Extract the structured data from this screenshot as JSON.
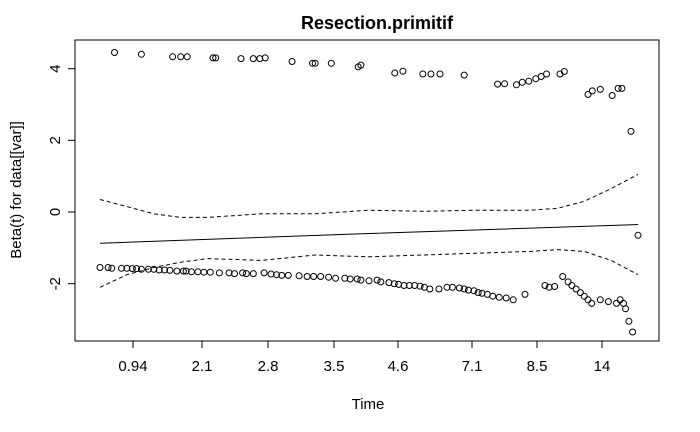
{
  "chart_data": {
    "type": "scatter",
    "title": "Resection.primitif",
    "xlabel": "Time",
    "ylabel": "Beta(t) for data[[var]]",
    "x_tick_labels": [
      "0.94",
      "2.1",
      "2.8",
      "3.5",
      "4.6",
      "7.1",
      "8.5",
      "14"
    ],
    "y_ticks": [
      -2,
      0,
      2,
      4
    ],
    "xlim": [
      0,
      1
    ],
    "ylim": [
      -3.6,
      4.8
    ],
    "grid": false,
    "points": [
      [
        0.027,
        4.45
      ],
      [
        0.077,
        4.4
      ],
      [
        0.135,
        4.33
      ],
      [
        0.15,
        4.33
      ],
      [
        0.162,
        4.33
      ],
      [
        0.21,
        4.3
      ],
      [
        0.215,
        4.3
      ],
      [
        0.262,
        4.28
      ],
      [
        0.285,
        4.28
      ],
      [
        0.297,
        4.28
      ],
      [
        0.307,
        4.3
      ],
      [
        0.357,
        4.2
      ],
      [
        0.395,
        4.15
      ],
      [
        0.4,
        4.15
      ],
      [
        0.43,
        4.15
      ],
      [
        0.48,
        4.05
      ],
      [
        0.485,
        4.1
      ],
      [
        0.548,
        3.88
      ],
      [
        0.563,
        3.93
      ],
      [
        0.6,
        3.85
      ],
      [
        0.615,
        3.85
      ],
      [
        0.632,
        3.85
      ],
      [
        0.677,
        3.82
      ],
      [
        0.739,
        3.57
      ],
      [
        0.752,
        3.58
      ],
      [
        0.774,
        3.55
      ],
      [
        0.785,
        3.62
      ],
      [
        0.797,
        3.65
      ],
      [
        0.81,
        3.72
      ],
      [
        0.82,
        3.78
      ],
      [
        0.83,
        3.85
      ],
      [
        0.855,
        3.85
      ],
      [
        0.863,
        3.92
      ],
      [
        0.907,
        3.28
      ],
      [
        0.915,
        3.38
      ],
      [
        0.93,
        3.42
      ],
      [
        0.952,
        3.25
      ],
      [
        0.963,
        3.45
      ],
      [
        0.97,
        3.45
      ],
      [
        0.987,
        2.25
      ],
      [
        1.0,
        -0.65
      ],
      [
        0.0,
        -1.55
      ],
      [
        0.015,
        -1.55
      ],
      [
        0.022,
        -1.57
      ],
      [
        0.04,
        -1.57
      ],
      [
        0.05,
        -1.57
      ],
      [
        0.06,
        -1.58
      ],
      [
        0.068,
        -1.58
      ],
      [
        0.077,
        -1.6
      ],
      [
        0.09,
        -1.6
      ],
      [
        0.1,
        -1.6
      ],
      [
        0.11,
        -1.62
      ],
      [
        0.12,
        -1.62
      ],
      [
        0.13,
        -1.63
      ],
      [
        0.143,
        -1.65
      ],
      [
        0.155,
        -1.65
      ],
      [
        0.16,
        -1.65
      ],
      [
        0.17,
        -1.67
      ],
      [
        0.182,
        -1.67
      ],
      [
        0.193,
        -1.68
      ],
      [
        0.205,
        -1.68
      ],
      [
        0.222,
        -1.7
      ],
      [
        0.24,
        -1.7
      ],
      [
        0.25,
        -1.72
      ],
      [
        0.265,
        -1.7
      ],
      [
        0.272,
        -1.72
      ],
      [
        0.285,
        -1.72
      ],
      [
        0.305,
        -1.7
      ],
      [
        0.318,
        -1.73
      ],
      [
        0.328,
        -1.75
      ],
      [
        0.338,
        -1.77
      ],
      [
        0.35,
        -1.77
      ],
      [
        0.37,
        -1.78
      ],
      [
        0.385,
        -1.8
      ],
      [
        0.397,
        -1.8
      ],
      [
        0.41,
        -1.8
      ],
      [
        0.425,
        -1.82
      ],
      [
        0.438,
        -1.85
      ],
      [
        0.455,
        -1.85
      ],
      [
        0.465,
        -1.87
      ],
      [
        0.478,
        -1.87
      ],
      [
        0.485,
        -1.9
      ],
      [
        0.5,
        -1.92
      ],
      [
        0.515,
        -1.9
      ],
      [
        0.522,
        -1.95
      ],
      [
        0.537,
        -1.97
      ],
      [
        0.547,
        -2.0
      ],
      [
        0.555,
        -2.02
      ],
      [
        0.565,
        -2.05
      ],
      [
        0.575,
        -2.05
      ],
      [
        0.585,
        -2.05
      ],
      [
        0.595,
        -2.07
      ],
      [
        0.603,
        -2.1
      ],
      [
        0.613,
        -2.15
      ],
      [
        0.63,
        -2.15
      ],
      [
        0.645,
        -2.1
      ],
      [
        0.655,
        -2.1
      ],
      [
        0.668,
        -2.12
      ],
      [
        0.677,
        -2.15
      ],
      [
        0.685,
        -2.18
      ],
      [
        0.695,
        -2.2
      ],
      [
        0.703,
        -2.25
      ],
      [
        0.71,
        -2.27
      ],
      [
        0.72,
        -2.3
      ],
      [
        0.73,
        -2.35
      ],
      [
        0.742,
        -2.38
      ],
      [
        0.755,
        -2.4
      ],
      [
        0.768,
        -2.45
      ],
      [
        0.79,
        -2.3
      ],
      [
        0.827,
        -2.05
      ],
      [
        0.835,
        -2.1
      ],
      [
        0.845,
        -2.08
      ],
      [
        0.86,
        -1.8
      ],
      [
        0.87,
        -1.95
      ],
      [
        0.877,
        -2.05
      ],
      [
        0.885,
        -2.15
      ],
      [
        0.893,
        -2.25
      ],
      [
        0.9,
        -2.35
      ],
      [
        0.907,
        -2.45
      ],
      [
        0.914,
        -2.55
      ],
      [
        0.93,
        -2.45
      ],
      [
        0.945,
        -2.5
      ],
      [
        0.96,
        -2.55
      ],
      [
        0.967,
        -2.45
      ],
      [
        0.973,
        -2.55
      ],
      [
        0.977,
        -2.7
      ],
      [
        0.983,
        -3.05
      ],
      [
        0.99,
        -3.35
      ]
    ],
    "lines": [
      {
        "style": "solid",
        "points": [
          [
            0.0,
            -0.87
          ],
          [
            0.5,
            -0.6
          ],
          [
            1.0,
            -0.35
          ]
        ]
      },
      {
        "style": "dashed",
        "points": [
          [
            0.0,
            0.35
          ],
          [
            0.05,
            0.15
          ],
          [
            0.1,
            -0.05
          ],
          [
            0.15,
            -0.15
          ],
          [
            0.2,
            -0.15
          ],
          [
            0.3,
            -0.05
          ],
          [
            0.4,
            -0.05
          ],
          [
            0.5,
            0.05
          ],
          [
            0.6,
            0.02
          ],
          [
            0.7,
            0.05
          ],
          [
            0.8,
            0.05
          ],
          [
            0.85,
            0.1
          ],
          [
            0.9,
            0.3
          ],
          [
            0.95,
            0.65
          ],
          [
            1.0,
            1.05
          ]
        ]
      },
      {
        "style": "dashed",
        "points": [
          [
            0.0,
            -2.1
          ],
          [
            0.05,
            -1.75
          ],
          [
            0.1,
            -1.55
          ],
          [
            0.15,
            -1.4
          ],
          [
            0.2,
            -1.3
          ],
          [
            0.3,
            -1.35
          ],
          [
            0.4,
            -1.2
          ],
          [
            0.5,
            -1.25
          ],
          [
            0.6,
            -1.2
          ],
          [
            0.7,
            -1.15
          ],
          [
            0.8,
            -1.1
          ],
          [
            0.85,
            -1.05
          ],
          [
            0.9,
            -1.1
          ],
          [
            0.95,
            -1.35
          ],
          [
            1.0,
            -1.75
          ]
        ]
      }
    ]
  }
}
